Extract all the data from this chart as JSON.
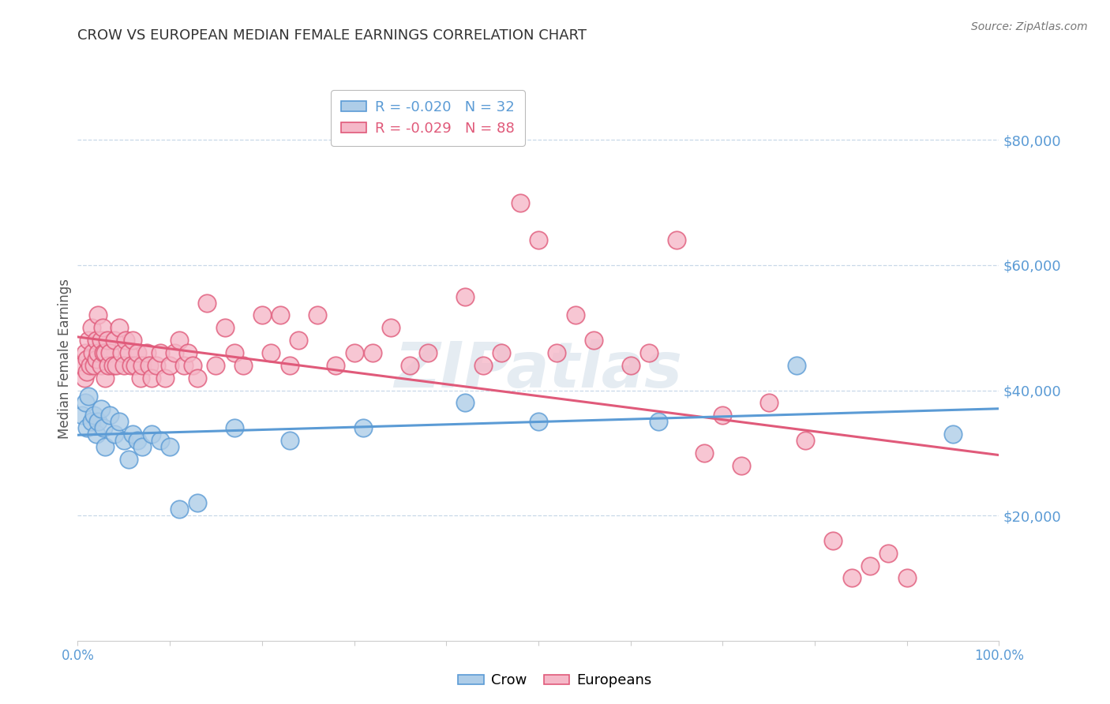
{
  "title": "CROW VS EUROPEAN MEDIAN FEMALE EARNINGS CORRELATION CHART",
  "source": "Source: ZipAtlas.com",
  "ylabel": "Median Female Earnings",
  "ytick_labels": [
    "$20,000",
    "$40,000",
    "$60,000",
    "$80,000"
  ],
  "ytick_values": [
    20000,
    40000,
    60000,
    80000
  ],
  "ylim": [
    0,
    90000
  ],
  "xlim": [
    0.0,
    1.0
  ],
  "legend_entries": [
    {
      "label": "R = -0.020   N = 32",
      "color": "#5b9bd5"
    },
    {
      "label": "R = -0.029   N = 88",
      "color": "#e05a7a"
    }
  ],
  "legend_labels": [
    "Crow",
    "Europeans"
  ],
  "crow_color": "#5b9bd5",
  "europeans_color": "#e05a7a",
  "crow_marker_color": "#aecde8",
  "europeans_marker_color": "#f5b8c8",
  "axis_color": "#5b9bd5",
  "grid_color": "#c8d8e8",
  "background_color": "#ffffff",
  "crow_x": [
    0.005,
    0.008,
    0.01,
    0.012,
    0.015,
    0.018,
    0.02,
    0.022,
    0.025,
    0.028,
    0.03,
    0.035,
    0.04,
    0.045,
    0.05,
    0.055,
    0.06,
    0.065,
    0.07,
    0.08,
    0.09,
    0.1,
    0.11,
    0.13,
    0.17,
    0.23,
    0.31,
    0.42,
    0.5,
    0.63,
    0.78,
    0.95
  ],
  "crow_y": [
    36000,
    38000,
    34000,
    39000,
    35000,
    36000,
    33000,
    35000,
    37000,
    34000,
    31000,
    36000,
    33000,
    35000,
    32000,
    29000,
    33000,
    32000,
    31000,
    33000,
    32000,
    31000,
    21000,
    22000,
    34000,
    32000,
    34000,
    38000,
    35000,
    35000,
    44000,
    33000
  ],
  "europeans_x": [
    0.005,
    0.007,
    0.008,
    0.01,
    0.01,
    0.012,
    0.013,
    0.015,
    0.016,
    0.018,
    0.02,
    0.02,
    0.022,
    0.022,
    0.025,
    0.025,
    0.027,
    0.028,
    0.03,
    0.03,
    0.032,
    0.033,
    0.035,
    0.038,
    0.04,
    0.042,
    0.045,
    0.048,
    0.05,
    0.052,
    0.055,
    0.058,
    0.06,
    0.062,
    0.065,
    0.068,
    0.07,
    0.075,
    0.078,
    0.08,
    0.085,
    0.09,
    0.095,
    0.1,
    0.105,
    0.11,
    0.115,
    0.12,
    0.125,
    0.13,
    0.14,
    0.15,
    0.16,
    0.17,
    0.18,
    0.2,
    0.21,
    0.22,
    0.23,
    0.24,
    0.26,
    0.28,
    0.3,
    0.32,
    0.34,
    0.36,
    0.38,
    0.42,
    0.44,
    0.46,
    0.48,
    0.5,
    0.52,
    0.54,
    0.56,
    0.6,
    0.62,
    0.65,
    0.68,
    0.7,
    0.72,
    0.75,
    0.79,
    0.82,
    0.84,
    0.86,
    0.88,
    0.9
  ],
  "europeans_y": [
    44000,
    42000,
    46000,
    45000,
    43000,
    48000,
    44000,
    50000,
    46000,
    44000,
    48000,
    45000,
    52000,
    46000,
    48000,
    44000,
    50000,
    46000,
    46000,
    42000,
    48000,
    44000,
    46000,
    44000,
    48000,
    44000,
    50000,
    46000,
    44000,
    48000,
    46000,
    44000,
    48000,
    44000,
    46000,
    42000,
    44000,
    46000,
    44000,
    42000,
    44000,
    46000,
    42000,
    44000,
    46000,
    48000,
    44000,
    46000,
    44000,
    42000,
    54000,
    44000,
    50000,
    46000,
    44000,
    52000,
    46000,
    52000,
    44000,
    48000,
    52000,
    44000,
    46000,
    46000,
    50000,
    44000,
    46000,
    55000,
    44000,
    46000,
    70000,
    64000,
    46000,
    52000,
    48000,
    44000,
    46000,
    64000,
    30000,
    36000,
    28000,
    38000,
    32000,
    16000,
    10000,
    12000,
    14000,
    10000
  ]
}
